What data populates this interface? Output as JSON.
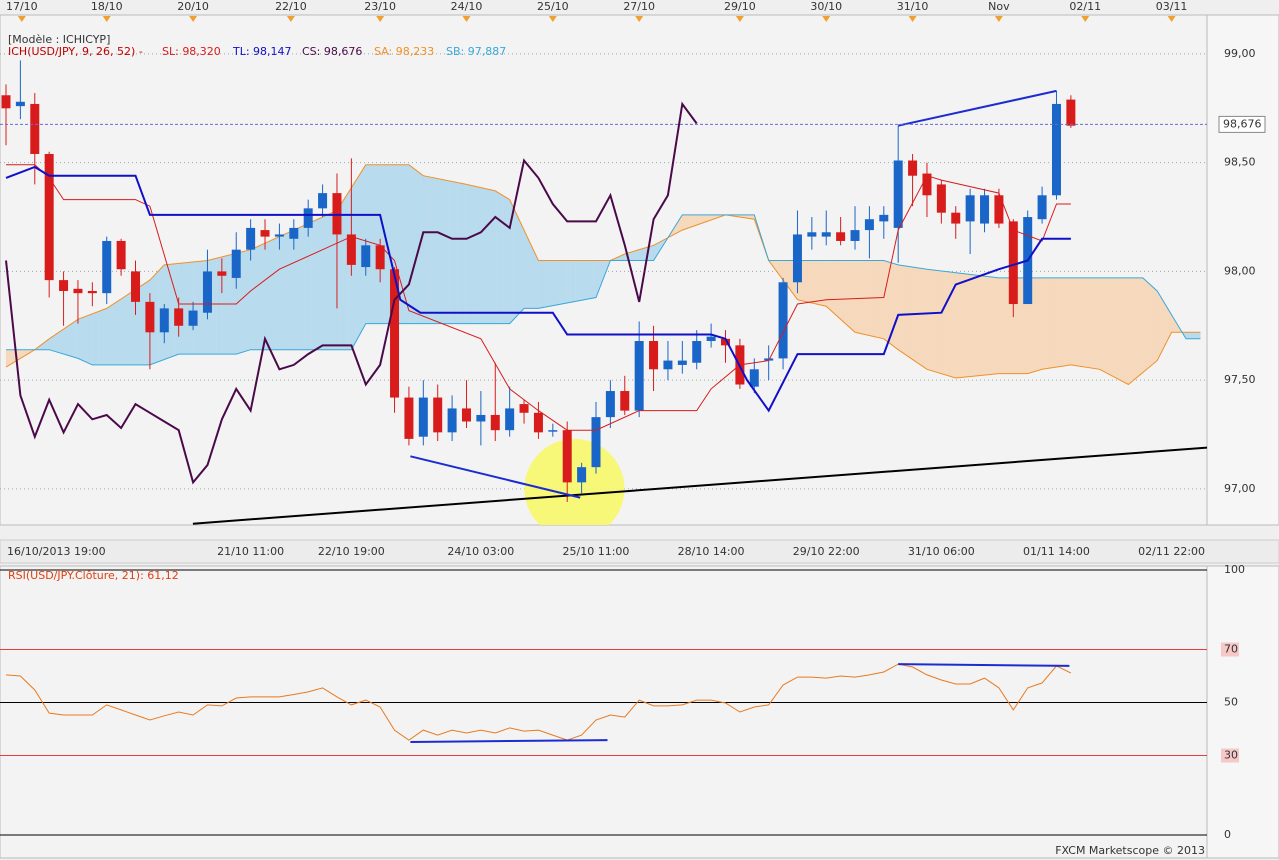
{
  "chart_data": [
    {
      "type": "candlestick",
      "title": "[Modèle : ICHICYP]",
      "subtitle": "ICH(USD/JPY, 9, 26, 52) -",
      "xlim": [
        -0.417,
        83.46
      ],
      "ylim": [
        96.834,
        99.179
      ],
      "yticks": [
        {
          "value": 99,
          "label": "99,00"
        },
        {
          "value": 98.5,
          "label": "98,50"
        },
        {
          "value": 98,
          "label": "98,00"
        },
        {
          "value": 97.5,
          "label": "97,50"
        },
        {
          "value": 97,
          "label": "97,00"
        }
      ],
      "grid": true,
      "xticks": [
        {
          "value": 3.5,
          "label": "16/10/2013 19:00"
        },
        {
          "value": 17,
          "label": "21/10 11:00"
        },
        {
          "value": 24,
          "label": "22/10 19:00"
        },
        {
          "value": 33,
          "label": "24/10 03:00"
        },
        {
          "value": 41,
          "label": "25/10 11:00"
        },
        {
          "value": 49,
          "label": "28/10 14:00"
        },
        {
          "value": 57,
          "label": "29/10 22:00"
        },
        {
          "value": 65,
          "label": "31/10 06:00"
        },
        {
          "value": 73,
          "label": "01/11 14:00"
        },
        {
          "value": 81,
          "label": "02/11 22:00"
        }
      ],
      "top_xticks": [
        {
          "value": 1.1,
          "label": "17/10"
        },
        {
          "value": 7,
          "label": "18/10"
        },
        {
          "value": 13,
          "label": "20/10"
        },
        {
          "value": 19.8,
          "label": "22/10"
        },
        {
          "value": 26,
          "label": "23/10"
        },
        {
          "value": 32,
          "label": "24/10"
        },
        {
          "value": 38,
          "label": "25/10"
        },
        {
          "value": 44,
          "label": "27/10"
        },
        {
          "value": 51,
          "label": "29/10"
        },
        {
          "value": 57,
          "label": "30/10"
        },
        {
          "value": 63,
          "label": "31/10"
        },
        {
          "value": 69,
          "label": "Nov"
        },
        {
          "value": 75,
          "label": "02/11"
        },
        {
          "value": 81,
          "label": "03/11"
        }
      ],
      "up_color": "#1a66c8",
      "down_color": "#d81c1c",
      "open": [
        98.81,
        98.76,
        98.77,
        98.54,
        97.96,
        97.92,
        97.91,
        97.9,
        98.14,
        98.0,
        97.86,
        97.72,
        97.83,
        97.75,
        97.81,
        98.0,
        97.97,
        98.1,
        98.19,
        98.16,
        98.15,
        98.2,
        98.29,
        98.36,
        98.17,
        98.02,
        98.12,
        98.01,
        97.42,
        97.24,
        97.42,
        97.26,
        97.37,
        97.31,
        97.34,
        97.27,
        97.39,
        97.35,
        97.27,
        97.27,
        97.03,
        97.1,
        97.33,
        97.45,
        97.36,
        97.68,
        97.55,
        97.57,
        97.58,
        97.68,
        97.69,
        97.66,
        97.47,
        97.59,
        97.6,
        97.95,
        98.16,
        98.16,
        98.18,
        98.14,
        98.19,
        98.23,
        98.2,
        98.51,
        98.45,
        98.4,
        98.27,
        98.23,
        98.22,
        98.35,
        98.23,
        97.85,
        98.24,
        98.35,
        98.79
      ],
      "high": [
        98.86,
        98.97,
        98.82,
        98.55,
        98.0,
        97.96,
        97.95,
        98.16,
        98.15,
        98.05,
        97.9,
        97.85,
        97.88,
        97.86,
        98.1,
        98.06,
        98.18,
        98.24,
        98.24,
        98.22,
        98.24,
        98.33,
        98.4,
        98.45,
        98.52,
        98.15,
        98.15,
        98.02,
        97.47,
        97.5,
        97.48,
        97.43,
        97.5,
        97.45,
        97.58,
        97.47,
        97.41,
        97.4,
        97.3,
        97.31,
        97.12,
        97.4,
        97.5,
        97.52,
        97.77,
        97.75,
        97.68,
        97.68,
        97.73,
        97.76,
        97.73,
        97.69,
        97.6,
        97.66,
        97.97,
        98.28,
        98.25,
        98.28,
        98.25,
        98.3,
        98.3,
        98.3,
        98.67,
        98.54,
        98.5,
        98.42,
        98.3,
        98.38,
        98.38,
        98.38,
        98.24,
        98.28,
        98.39,
        98.83,
        98.81
      ],
      "low": [
        98.58,
        98.7,
        98.4,
        97.88,
        97.75,
        97.76,
        97.84,
        97.85,
        97.98,
        97.8,
        97.55,
        97.67,
        97.7,
        97.73,
        97.78,
        97.9,
        97.92,
        98.05,
        98.1,
        98.1,
        98.1,
        98.16,
        98.25,
        97.83,
        97.98,
        97.98,
        97.95,
        97.35,
        97.2,
        97.2,
        97.22,
        97.22,
        97.28,
        97.2,
        97.22,
        97.24,
        97.3,
        97.23,
        97.24,
        96.94,
        96.98,
        97.07,
        97.28,
        97.34,
        97.33,
        97.45,
        97.5,
        97.53,
        97.55,
        97.65,
        97.58,
        97.46,
        97.44,
        97.5,
        97.55,
        97.9,
        98.1,
        98.12,
        98.12,
        98.1,
        98.06,
        98.15,
        98.04,
        98.3,
        98.25,
        98.22,
        98.15,
        98.08,
        98.18,
        98.2,
        97.79,
        97.85,
        98.22,
        98.33,
        98.66
      ],
      "close": [
        98.75,
        98.78,
        98.54,
        97.96,
        97.91,
        97.9,
        97.9,
        98.14,
        98.01,
        97.86,
        97.72,
        97.83,
        97.75,
        97.82,
        98.0,
        97.98,
        98.1,
        98.2,
        98.16,
        98.17,
        98.2,
        98.29,
        98.36,
        98.17,
        98.03,
        98.12,
        98.01,
        97.42,
        97.23,
        97.42,
        97.26,
        97.37,
        97.31,
        97.34,
        97.27,
        97.37,
        97.35,
        97.26,
        97.27,
        97.03,
        97.1,
        97.33,
        97.45,
        97.36,
        97.68,
        97.55,
        97.59,
        97.59,
        97.68,
        97.7,
        97.66,
        97.48,
        97.55,
        97.6,
        97.95,
        98.17,
        98.18,
        98.18,
        98.14,
        98.19,
        98.24,
        98.26,
        98.51,
        98.44,
        98.35,
        98.27,
        98.22,
        98.35,
        98.35,
        98.22,
        97.85,
        98.25,
        98.35,
        98.77,
        98.67
      ],
      "series": [
        {
          "name": "SL: 98,320",
          "color": "#d81c1c",
          "width": 1,
          "x": [
            0,
            2,
            3,
            4,
            9,
            10,
            12,
            16,
            17,
            19,
            22,
            24,
            26,
            27,
            28,
            33,
            35,
            37,
            39,
            41,
            44,
            48,
            49,
            51,
            53,
            55,
            57,
            61,
            62,
            64,
            65,
            69,
            70,
            72,
            73,
            74
          ],
          "values": [
            98.49,
            98.49,
            98.43,
            98.33,
            98.33,
            98.3,
            97.85,
            97.85,
            97.91,
            98.01,
            98.1,
            98.16,
            98.12,
            98.05,
            97.82,
            97.69,
            97.46,
            97.36,
            97.27,
            97.27,
            97.36,
            97.36,
            97.46,
            97.57,
            97.59,
            97.85,
            97.87,
            97.88,
            98.19,
            98.44,
            98.42,
            98.36,
            98.19,
            98.14,
            98.31,
            98.31
          ]
        },
        {
          "name": "TL: 98,147",
          "color": "#1010c8",
          "width": 2,
          "x": [
            0,
            2,
            3,
            9,
            10,
            26,
            27.4,
            28.8,
            38,
            39,
            49,
            50,
            51.5,
            53,
            55,
            61,
            62,
            65,
            66,
            69,
            71,
            72,
            74
          ],
          "values": [
            98.43,
            98.48,
            98.44,
            98.44,
            98.26,
            98.26,
            97.87,
            97.81,
            97.81,
            97.71,
            97.71,
            97.69,
            97.5,
            97.36,
            97.62,
            97.62,
            97.8,
            97.81,
            97.94,
            98.01,
            98.05,
            98.15,
            98.15
          ]
        },
        {
          "name": "CS: 98,676",
          "color": "#4a0a4a",
          "width": 2,
          "values": [
            98.05,
            97.43,
            97.24,
            97.41,
            97.26,
            97.39,
            97.32,
            97.34,
            97.28,
            97.39,
            97.35,
            97.31,
            97.27,
            97.03,
            97.11,
            97.32,
            97.46,
            97.36,
            97.69,
            97.55,
            97.57,
            97.62,
            97.66,
            97.66,
            97.66,
            97.48,
            97.57,
            97.87,
            97.94,
            98.18,
            98.18,
            98.15,
            98.15,
            98.18,
            98.25,
            98.2,
            98.51,
            98.43,
            98.31,
            98.23,
            98.23,
            98.23,
            98.35,
            98.12,
            97.86,
            98.24,
            98.35,
            98.77,
            98.68
          ]
        },
        {
          "name": "SA: 98,233",
          "color": "#f0902a",
          "width": 1,
          "x": [
            0,
            2,
            3,
            5,
            7,
            10,
            11,
            14,
            17,
            20,
            23,
            25,
            28,
            29,
            32,
            34,
            35,
            37,
            38,
            42,
            43,
            45,
            47,
            50,
            52,
            53,
            55,
            57,
            59,
            61,
            62,
            64,
            66,
            69,
            71,
            72,
            74,
            76,
            78,
            80,
            81,
            83
          ],
          "values": [
            97.56,
            97.64,
            97.69,
            97.78,
            97.83,
            97.96,
            98.03,
            98.05,
            98.1,
            98.19,
            98.28,
            98.49,
            98.49,
            98.44,
            98.4,
            98.37,
            98.33,
            98.05,
            98.05,
            98.05,
            98.08,
            98.12,
            98.19,
            98.26,
            98.24,
            98.05,
            97.87,
            97.84,
            97.72,
            97.69,
            97.64,
            97.55,
            97.51,
            97.53,
            97.53,
            97.55,
            97.57,
            97.55,
            97.48,
            97.59,
            97.72,
            97.72
          ]
        },
        {
          "name": "SB: 97,887",
          "color": "#3aa8d8",
          "width": 1,
          "x": [
            0,
            3,
            5,
            6,
            10,
            12,
            16,
            17,
            24,
            25,
            35,
            36,
            37,
            41,
            42,
            45,
            47,
            52,
            53,
            61,
            62,
            64,
            69,
            71,
            79,
            80,
            81,
            82,
            83
          ],
          "values": [
            97.64,
            97.64,
            97.6,
            97.57,
            97.57,
            97.62,
            97.62,
            97.64,
            97.64,
            97.76,
            97.76,
            97.83,
            97.83,
            97.88,
            98.05,
            98.05,
            98.26,
            98.26,
            98.05,
            98.05,
            98.03,
            98.01,
            97.97,
            97.97,
            97.97,
            97.91,
            97.8,
            97.69,
            97.69
          ]
        }
      ],
      "cloud_colors": [
        "#b9dbee",
        "#f6d9bd"
      ],
      "price_line": {
        "value": 98.676,
        "label": "98,676"
      },
      "lines": [
        {
          "color": "#000000",
          "x": [
            12.99,
            83.46
          ],
          "values": [
            96.84,
            97.19
          ]
        },
        {
          "color": "#1c2cd0",
          "x": [
            28.1,
            39.9
          ],
          "values": [
            97.15,
            96.96
          ]
        },
        {
          "color": "#1c2cd0",
          "x": [
            62,
            73
          ],
          "values": [
            98.67,
            98.83
          ]
        }
      ],
      "circle": {
        "x": 39.5,
        "value": 97.0,
        "radius": 0.23,
        "color": "#f7f76a"
      }
    },
    {
      "type": "line",
      "title": "RSI(USD/JPY.Clôture, 21): 61,12",
      "xlim": [
        -0.417,
        83.46
      ],
      "ylim": [
        0,
        100
      ],
      "yticks": [
        100,
        70,
        50,
        30,
        0
      ],
      "tick_colors": [
        "#000000",
        "#e04040",
        "#000000",
        "#e04040",
        "#000000"
      ],
      "series": [
        {
          "color": "#e87a20",
          "values": [
            60.4,
            60.0,
            54.7,
            46.0,
            45.3,
            45.3,
            45.3,
            49.1,
            47.2,
            45.3,
            43.4,
            45.0,
            46.4,
            45.3,
            49.1,
            48.7,
            51.7,
            52.1,
            52.1,
            52.1,
            53.0,
            54.0,
            55.5,
            52.1,
            49.1,
            50.9,
            48.3,
            39.6,
            35.8,
            39.6,
            37.7,
            39.6,
            38.5,
            39.6,
            38.5,
            40.4,
            39.2,
            39.6,
            37.7,
            35.8,
            37.7,
            43.4,
            45.3,
            44.5,
            50.9,
            48.7,
            48.7,
            49.1,
            50.9,
            50.9,
            49.8,
            46.4,
            48.3,
            49.1,
            56.6,
            59.6,
            59.6,
            59.2,
            60.0,
            59.6,
            60.4,
            61.5,
            64.5,
            63.4,
            60.4,
            58.5,
            57.0,
            57.0,
            59.2,
            55.5,
            47.2,
            55.5,
            57.4,
            63.8,
            61.1
          ]
        }
      ],
      "lines": [
        {
          "color": "#1c2cd0",
          "x": [
            28.1,
            41.8
          ],
          "values": [
            35.1,
            35.8
          ]
        },
        {
          "color": "#1c2cd0",
          "x": [
            62,
            73.9
          ],
          "values": [
            64.5,
            63.8
          ]
        }
      ]
    }
  ],
  "footer": "FXCM Marketscope © 2013"
}
